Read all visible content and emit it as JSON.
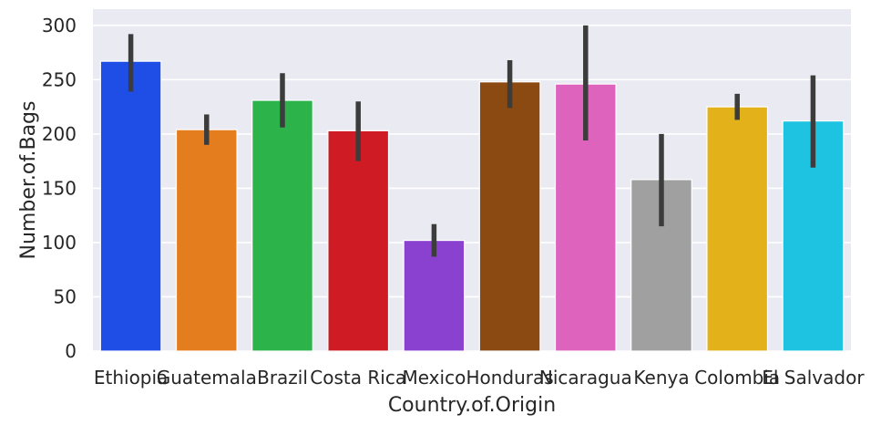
{
  "chart_data": {
    "type": "bar",
    "title": "",
    "xlabel": "Country.of.Origin",
    "ylabel": "Number.of.Bags",
    "categories": [
      "Ethiopia",
      "Guatemala",
      "Brazil",
      "Costa Rica",
      "Mexico",
      "Honduras",
      "Nicaragua",
      "Kenya",
      "Colombia",
      "El Salvador"
    ],
    "values": [
      267,
      204,
      231,
      203,
      102,
      248,
      246,
      158,
      225,
      212
    ],
    "error_low": [
      239,
      190,
      206,
      175,
      87,
      224,
      194,
      115,
      213,
      169
    ],
    "error_high": [
      292,
      218,
      256,
      230,
      117,
      268,
      300,
      200,
      237,
      254
    ],
    "colors": [
      "#1f4ee6",
      "#e37d1e",
      "#2cb34a",
      "#cf1b24",
      "#8b41cf",
      "#8b4a11",
      "#de63bd",
      "#a0a0a0",
      "#e3b21a",
      "#1ec3e1"
    ],
    "error_color": "#3c3c3c",
    "ylim": [
      0,
      315
    ],
    "yticks": [
      0,
      50,
      100,
      150,
      200,
      250,
      300
    ],
    "grid": true,
    "legend": "none",
    "background_color": "#eaeaf2"
  }
}
